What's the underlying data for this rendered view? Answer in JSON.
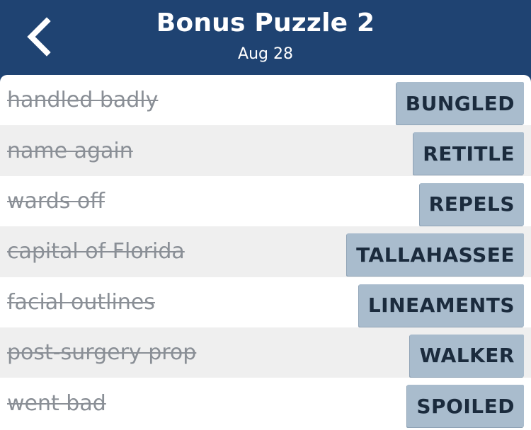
{
  "header": {
    "title": "Bonus Puzzle 2",
    "date": "Aug 28",
    "back_icon": "chevron-left-icon",
    "background_color": "#1f4372"
  },
  "clues": [
    {
      "clue": "handled badly",
      "answer": "BUNGLED"
    },
    {
      "clue": "name again",
      "answer": "RETITLE"
    },
    {
      "clue": "wards off",
      "answer": "REPELS"
    },
    {
      "clue": "capital of Florida",
      "answer": "TALLAHASSEE"
    },
    {
      "clue": "facial outlines",
      "answer": "LINEAMENTS"
    },
    {
      "clue": "post-surgery prop",
      "answer": "WALKER"
    },
    {
      "clue": "went bad",
      "answer": "SPOILED"
    }
  ],
  "colors": {
    "answer_tile": "#a9bccd",
    "answer_text": "#1b2b3d",
    "clue_text": "#8a8f96",
    "row_alt": "#efefef"
  }
}
